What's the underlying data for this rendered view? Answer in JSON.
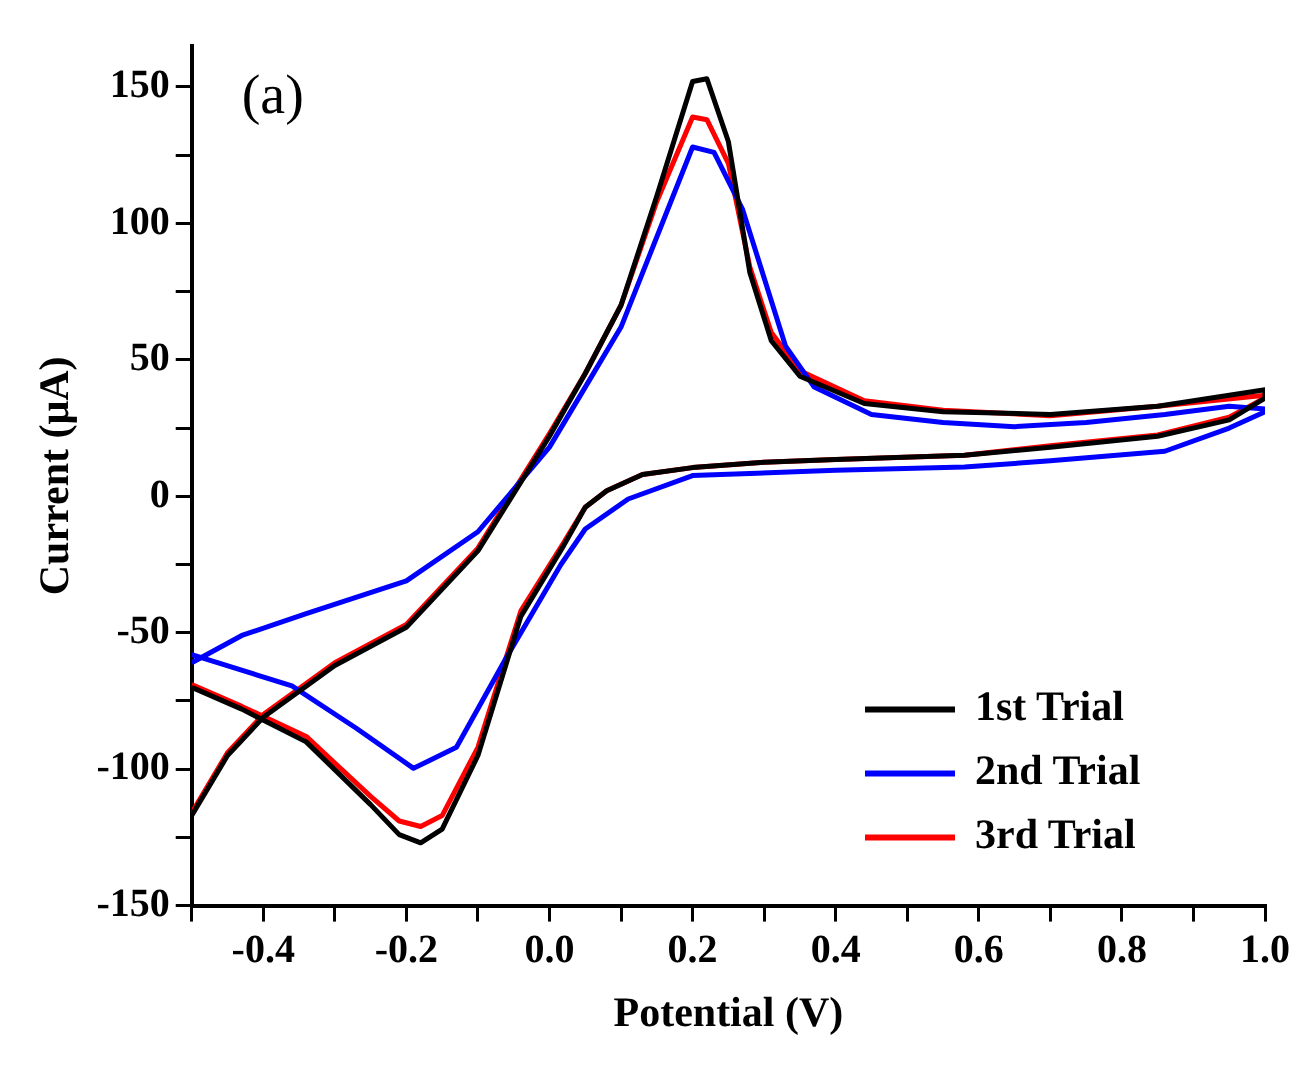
{
  "chart_data": {
    "type": "line",
    "xlabel": "Potential (V)",
    "ylabel": "Current (μA)",
    "annotations": [
      "(a)"
    ],
    "xlim": [
      -0.5,
      1.0
    ],
    "ylim": [
      -150,
      165
    ],
    "xticks": [
      {
        "value": -0.5,
        "label": null
      },
      {
        "value": -0.4,
        "label": "-0.4"
      },
      {
        "value": -0.3,
        "label": null
      },
      {
        "value": -0.2,
        "label": "-0.2"
      },
      {
        "value": -0.1,
        "label": null
      },
      {
        "value": 0,
        "label": "0.0"
      },
      {
        "value": 0.1,
        "label": null
      },
      {
        "value": 0.2,
        "label": "0.2"
      },
      {
        "value": 0.3,
        "label": null
      },
      {
        "value": 0.4,
        "label": "0.4"
      },
      {
        "value": 0.5,
        "label": null
      },
      {
        "value": 0.6,
        "label": "0.6"
      },
      {
        "value": 0.7,
        "label": null
      },
      {
        "value": 0.8,
        "label": "0.8"
      },
      {
        "value": 0.9,
        "label": null
      },
      {
        "value": 1.0,
        "label": "1.0"
      }
    ],
    "yticks": [
      -150,
      {
        "value": -125,
        "label": null
      },
      -100,
      {
        "value": -75,
        "label": null
      },
      -50,
      {
        "value": -25,
        "label": null
      },
      0,
      {
        "value": 25,
        "label": null
      },
      50,
      {
        "value": 75,
        "label": null
      },
      100,
      {
        "value": 125,
        "label": null
      },
      150
    ],
    "legend": "bottom right",
    "grid": false,
    "marker": "none",
    "line_style": "solid",
    "series": [
      {
        "name": "1st Trial",
        "color": "#000000",
        "x": [
          -0.5,
          -0.45,
          -0.4,
          -0.3,
          -0.2,
          -0.1,
          0,
          0.05,
          0.1,
          0.15,
          0.2,
          0.22,
          0.25,
          0.28,
          0.31,
          0.35,
          0.44,
          0.55,
          0.7,
          0.85,
          1.0,
          1.0,
          0.95,
          0.85,
          0.7,
          0.58,
          0.4,
          0.3,
          0.2,
          0.13,
          0.08,
          0.05,
          0.02,
          -0.04,
          -0.1,
          -0.15,
          -0.18,
          -0.21,
          -0.25,
          -0.34,
          -0.43,
          -0.5
        ],
        "values": [
          -117,
          -95,
          -81,
          -62,
          -48,
          -20,
          22,
          45,
          70,
          110,
          152,
          153,
          130,
          82,
          57,
          44,
          34,
          31,
          30,
          33,
          39,
          36,
          28,
          22,
          18,
          15,
          13.5,
          12.5,
          10.5,
          8,
          2,
          -4,
          -18,
          -44,
          -95,
          -122,
          -127,
          -124,
          -113,
          -90,
          -78,
          -70
        ]
      },
      {
        "name": "2nd Trial",
        "color": "#0000ff",
        "x": [
          -0.5,
          -0.43,
          -0.34,
          -0.2,
          -0.1,
          0,
          0.05,
          0.1,
          0.15,
          0.2,
          0.23,
          0.27,
          0.3,
          0.33,
          0.37,
          0.45,
          0.55,
          0.65,
          0.75,
          0.86,
          0.95,
          1.0,
          1.0,
          0.95,
          0.86,
          0.7,
          0.58,
          0.4,
          0.2,
          0.11,
          0.05,
          0.016,
          -0.06,
          -0.13,
          -0.19,
          -0.27,
          -0.36,
          -0.5
        ],
        "values": [
          -61,
          -51,
          -43,
          -31,
          -13,
          18,
          40,
          62,
          95,
          128,
          126,
          105,
          80,
          55,
          40,
          30,
          27,
          25.5,
          27,
          30,
          33,
          32,
          31,
          25,
          16.5,
          13,
          10.7,
          9.5,
          7.6,
          -1,
          -12,
          -25,
          -59,
          -92,
          -99.7,
          -85,
          -69.5,
          -58
        ]
      },
      {
        "name": "3rd Trial",
        "color": "#ff0000",
        "x": [
          -0.5,
          -0.45,
          -0.4,
          -0.3,
          -0.2,
          -0.1,
          0,
          0.05,
          0.1,
          0.15,
          0.2,
          0.22,
          0.25,
          0.28,
          0.31,
          0.35,
          0.44,
          0.55,
          0.7,
          0.85,
          1.0,
          1.0,
          0.95,
          0.85,
          0.7,
          0.58,
          0.4,
          0.3,
          0.2,
          0.13,
          0.08,
          0.05,
          0.02,
          -0.04,
          -0.1,
          -0.15,
          -0.18,
          -0.21,
          -0.25,
          -0.34,
          -0.43,
          -0.5
        ],
        "values": [
          -116,
          -94,
          -80,
          -61,
          -47,
          -19,
          23,
          45,
          70,
          108,
          139,
          138,
          122,
          84,
          60,
          46,
          35,
          31.5,
          29.5,
          33,
          37,
          36,
          29,
          22.5,
          18.5,
          15,
          13.5,
          12.5,
          10.5,
          8,
          2,
          -4,
          -17,
          -42,
          -92,
          -117,
          -121,
          -119,
          -110,
          -88,
          -77,
          -69
        ]
      }
    ]
  }
}
